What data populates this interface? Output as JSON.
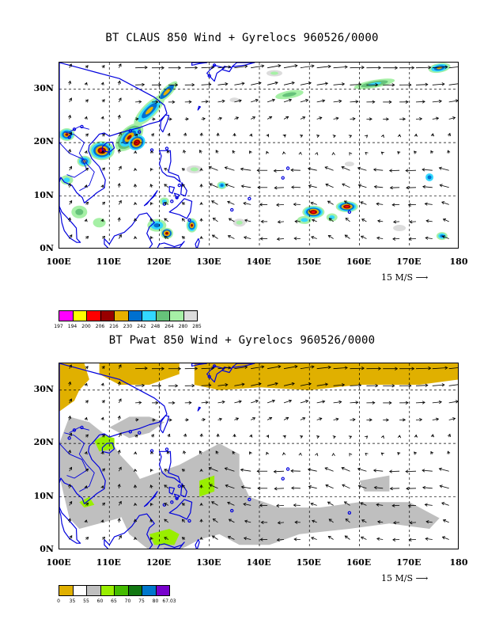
{
  "panels": [
    {
      "id": "claus",
      "title": "BT CLAUS 850 Wind + Gyrelocs 960526/0000",
      "lat_labels": [
        "30N",
        "20N",
        "10N",
        "0N"
      ],
      "lon_labels": [
        "100E",
        "110E",
        "120E",
        "130E",
        "140E",
        "150E",
        "160E",
        "170E",
        "180"
      ],
      "ref_vector": "15 M/S",
      "legend": {
        "colors": [
          "#ff00ff",
          "#ffff00",
          "#ff0000",
          "#990000",
          "#e6b000",
          "#0070d0",
          "#33d8ff",
          "#66c27a",
          "#a6f0a6",
          "#dcdcdc"
        ],
        "labels": [
          "197",
          "194",
          "200",
          "206",
          "216",
          "230",
          "242",
          "248",
          "264",
          "280",
          "285"
        ]
      }
    },
    {
      "id": "pwat",
      "title": "BT Pwat 850 Wind + Gyrelocs 960526/0000",
      "lat_labels": [
        "30N",
        "20N",
        "10N",
        "0N"
      ],
      "lon_labels": [
        "100E",
        "110E",
        "120E",
        "130E",
        "140E",
        "150E",
        "160E",
        "170E",
        "180"
      ],
      "ref_vector": "15 M/S",
      "legend": {
        "colors": [
          "#e0b000",
          "#ffffff",
          "#bfbfbf",
          "#99ee00",
          "#44bb00",
          "#117711",
          "#0077cc",
          "#7700cc"
        ],
        "labels": [
          "0",
          "35",
          "55",
          "60",
          "65",
          "70",
          "75",
          "80",
          "67.03"
        ]
      }
    }
  ],
  "map": {
    "lon_range": [
      100,
      180
    ],
    "lat_range": [
      0,
      35
    ],
    "coast_color": "#0000dd",
    "grid": "dashed"
  }
}
